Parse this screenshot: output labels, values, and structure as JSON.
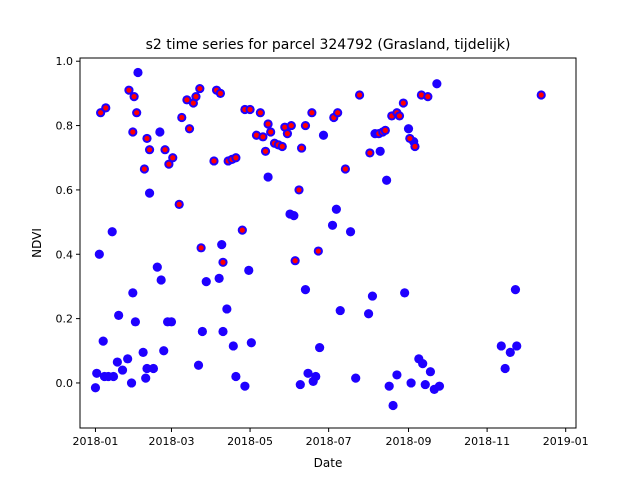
{
  "chart_data": {
    "type": "scatter",
    "title": "s2 time series for parcel 324792 (Grasland, tijdelijk)",
    "xlabel": "Date",
    "ylabel": "NDVI",
    "xlim": [
      "2017-12-20",
      "2019-01-09"
    ],
    "ylim": [
      -0.14,
      1.01
    ],
    "x_ticks": [
      "2018-01-01",
      "2018-03-01",
      "2018-05-01",
      "2018-07-01",
      "2018-09-01",
      "2018-11-01",
      "2019-01-01"
    ],
    "x_tick_labels": [
      "2018-01",
      "2018-03",
      "2018-05",
      "2018-07",
      "2018-09",
      "2018-11",
      "2019-01"
    ],
    "y_ticks": [
      0.0,
      0.2,
      0.4,
      0.6,
      0.8,
      1.0
    ],
    "y_tick_labels": [
      "0.0",
      "0.2",
      "0.4",
      "0.6",
      "0.8",
      "1.0"
    ],
    "grid": false,
    "legend": "none",
    "colors": {
      "all_points": "#1f00ff",
      "flagged_points": "#ff0000"
    },
    "series": [
      {
        "points": [
          [
            "2018-01-01",
            -0.015
          ],
          [
            "2018-01-02",
            0.03
          ],
          [
            "2018-01-04",
            0.4
          ],
          [
            "2018-01-07",
            0.13
          ],
          [
            "2018-01-08",
            0.02
          ],
          [
            "2018-01-11",
            0.02
          ],
          [
            "2018-01-14",
            0.47
          ],
          [
            "2018-01-15",
            0.02
          ],
          [
            "2018-01-18",
            0.065
          ],
          [
            "2018-01-19",
            0.21
          ],
          [
            "2018-01-22",
            0.04
          ],
          [
            "2018-01-26",
            0.075
          ],
          [
            "2018-01-29",
            0.0
          ],
          [
            "2018-01-30",
            0.28
          ],
          [
            "2018-02-01",
            0.19
          ],
          [
            "2018-02-07",
            0.095
          ],
          [
            "2018-02-09",
            0.015
          ],
          [
            "2018-02-10",
            0.045
          ],
          [
            "2018-02-12",
            0.59
          ],
          [
            "2018-02-15",
            0.045
          ],
          [
            "2018-02-18",
            0.36
          ],
          [
            "2018-02-21",
            0.32
          ],
          [
            "2018-02-23",
            0.1
          ],
          [
            "2018-02-26",
            0.19
          ],
          [
            "2018-03-01",
            0.19
          ],
          [
            "2018-03-22",
            0.055
          ],
          [
            "2018-03-25",
            0.16
          ],
          [
            "2018-03-28",
            0.315
          ],
          [
            "2018-04-07",
            0.325
          ],
          [
            "2018-04-09",
            0.43
          ],
          [
            "2018-04-10",
            0.16
          ],
          [
            "2018-04-13",
            0.23
          ],
          [
            "2018-04-18",
            0.115
          ],
          [
            "2018-04-20",
            0.02
          ],
          [
            "2018-04-27",
            -0.01
          ],
          [
            "2018-04-30",
            0.35
          ],
          [
            "2018-05-02",
            0.125
          ],
          [
            "2018-05-15",
            0.64
          ],
          [
            "2018-06-01",
            0.525
          ],
          [
            "2018-06-04",
            0.52
          ],
          [
            "2018-06-09",
            -0.005
          ],
          [
            "2018-06-13",
            0.29
          ],
          [
            "2018-06-15",
            0.03
          ],
          [
            "2018-06-19",
            0.005
          ],
          [
            "2018-06-21",
            0.02
          ],
          [
            "2018-06-24",
            0.11
          ],
          [
            "2018-06-27",
            0.77
          ],
          [
            "2018-07-04",
            0.49
          ],
          [
            "2018-07-07",
            0.54
          ],
          [
            "2018-07-10",
            0.225
          ],
          [
            "2018-07-18",
            0.47
          ],
          [
            "2018-07-22",
            0.015
          ],
          [
            "2018-08-01",
            0.215
          ],
          [
            "2018-08-04",
            0.27
          ],
          [
            "2018-08-10",
            0.72
          ],
          [
            "2018-08-15",
            0.63
          ],
          [
            "2018-08-17",
            -0.01
          ],
          [
            "2018-08-20",
            -0.07
          ],
          [
            "2018-08-23",
            0.025
          ],
          [
            "2018-08-29",
            0.28
          ],
          [
            "2018-09-01",
            0.79
          ],
          [
            "2018-09-03",
            0.0
          ],
          [
            "2018-09-05",
            0.75
          ],
          [
            "2018-09-09",
            0.075
          ],
          [
            "2018-09-12",
            0.06
          ],
          [
            "2018-09-14",
            -0.005
          ],
          [
            "2018-09-18",
            0.035
          ],
          [
            "2018-09-21",
            -0.02
          ],
          [
            "2018-09-23",
            0.93
          ],
          [
            "2018-09-25",
            -0.01
          ],
          [
            "2018-11-12",
            0.115
          ],
          [
            "2018-11-15",
            0.045
          ],
          [
            "2018-11-19",
            0.095
          ],
          [
            "2018-11-23",
            0.29
          ],
          [
            "2018-11-24",
            0.115
          ],
          [
            "2018-02-03",
            0.965
          ],
          [
            "2018-02-20",
            0.78
          ],
          [
            "2018-08-06",
            0.775
          ]
        ]
      },
      {
        "points": [
          [
            "2018-01-05",
            0.84
          ],
          [
            "2018-01-09",
            0.855
          ],
          [
            "2018-01-27",
            0.91
          ],
          [
            "2018-01-30",
            0.78
          ],
          [
            "2018-01-31",
            0.89
          ],
          [
            "2018-02-02",
            0.84
          ],
          [
            "2018-02-08",
            0.665
          ],
          [
            "2018-02-10",
            0.76
          ],
          [
            "2018-02-12",
            0.725
          ],
          [
            "2018-02-24",
            0.725
          ],
          [
            "2018-02-27",
            0.68
          ],
          [
            "2018-03-02",
            0.7
          ],
          [
            "2018-03-07",
            0.555
          ],
          [
            "2018-03-09",
            0.825
          ],
          [
            "2018-03-13",
            0.88
          ],
          [
            "2018-03-15",
            0.79
          ],
          [
            "2018-03-18",
            0.87
          ],
          [
            "2018-03-20",
            0.89
          ],
          [
            "2018-03-23",
            0.915
          ],
          [
            "2018-03-24",
            0.42
          ],
          [
            "2018-04-03",
            0.69
          ],
          [
            "2018-04-05",
            0.91
          ],
          [
            "2018-04-08",
            0.9
          ],
          [
            "2018-04-10",
            0.375
          ],
          [
            "2018-04-14",
            0.69
          ],
          [
            "2018-04-17",
            0.695
          ],
          [
            "2018-04-20",
            0.7
          ],
          [
            "2018-04-25",
            0.475
          ],
          [
            "2018-04-27",
            0.85
          ],
          [
            "2018-05-01",
            0.85
          ],
          [
            "2018-05-06",
            0.77
          ],
          [
            "2018-05-09",
            0.84
          ],
          [
            "2018-05-11",
            0.765
          ],
          [
            "2018-05-13",
            0.72
          ],
          [
            "2018-05-15",
            0.805
          ],
          [
            "2018-05-17",
            0.78
          ],
          [
            "2018-05-20",
            0.745
          ],
          [
            "2018-05-23",
            0.74
          ],
          [
            "2018-05-26",
            0.735
          ],
          [
            "2018-05-28",
            0.795
          ],
          [
            "2018-05-30",
            0.775
          ],
          [
            "2018-06-02",
            0.8
          ],
          [
            "2018-06-05",
            0.38
          ],
          [
            "2018-06-08",
            0.6
          ],
          [
            "2018-06-10",
            0.73
          ],
          [
            "2018-06-13",
            0.8
          ],
          [
            "2018-06-18",
            0.84
          ],
          [
            "2018-06-23",
            0.41
          ],
          [
            "2018-07-05",
            0.825
          ],
          [
            "2018-07-08",
            0.84
          ],
          [
            "2018-07-14",
            0.665
          ],
          [
            "2018-07-25",
            0.895
          ],
          [
            "2018-08-02",
            0.715
          ],
          [
            "2018-08-09",
            0.775
          ],
          [
            "2018-08-12",
            0.78
          ],
          [
            "2018-08-14",
            0.785
          ],
          [
            "2018-08-19",
            0.83
          ],
          [
            "2018-08-23",
            0.84
          ],
          [
            "2018-08-25",
            0.83
          ],
          [
            "2018-08-28",
            0.87
          ],
          [
            "2018-09-02",
            0.76
          ],
          [
            "2018-09-06",
            0.735
          ],
          [
            "2018-09-11",
            0.895
          ],
          [
            "2018-09-16",
            0.89
          ],
          [
            "2018-12-13",
            0.895
          ]
        ]
      }
    ]
  }
}
